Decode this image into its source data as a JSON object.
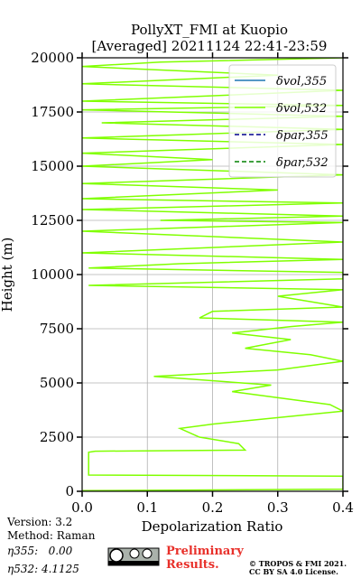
{
  "chart_data": {
    "type": "line",
    "title": "PollyXT_FMI at Kuopio",
    "subtitle": "[Averaged] 20211124 22:41-23:59",
    "x_label": "Depolarization Ratio",
    "y_label": "Height (m)",
    "xlim": [
      0,
      0.4
    ],
    "ylim": [
      0,
      20000
    ],
    "xticks": [
      {
        "value": 0,
        "label": "0.0"
      },
      0.1,
      0.2,
      0.3,
      0.4
    ],
    "yticks": [
      0,
      2500,
      5000,
      7500,
      10000,
      12500,
      15000,
      17500,
      20000
    ],
    "grid": true,
    "legend": "upper right",
    "y": [
      30,
      100,
      700,
      750,
      1800,
      1850,
      1900,
      2200,
      2500,
      2900,
      3100,
      3700,
      4000,
      4600,
      4900,
      5300,
      5600,
      6000,
      6300,
      6600,
      7000,
      7300,
      7600,
      7800,
      8000,
      8300,
      8500,
      9000,
      9300,
      9500,
      9800,
      10100,
      10300,
      10500,
      10700,
      11000,
      11500,
      12000,
      12400,
      12500,
      12700,
      13000,
      13300,
      13500,
      13900,
      14200,
      14600,
      15000,
      15300,
      15600,
      16000,
      16300,
      16700,
      17000,
      17300,
      17600,
      17800,
      18000,
      18500,
      18800,
      19200,
      19600,
      19800,
      20000
    ],
    "series": [
      {
        "name": "δvol,355",
        "color": "#1f77b4",
        "linestyle": "solid",
        "values": [
          null,
          null,
          null,
          null,
          null,
          null,
          null,
          null,
          null,
          null,
          null,
          null,
          null,
          null,
          null,
          null,
          null,
          null,
          null,
          null,
          null,
          null,
          null,
          null,
          null,
          null,
          null,
          null,
          null,
          null,
          null,
          null,
          null,
          null,
          null,
          null,
          null,
          null,
          null,
          null,
          null,
          null,
          null,
          null,
          null,
          null,
          null,
          null,
          null,
          null,
          null,
          null,
          null,
          null,
          null,
          null,
          null,
          null,
          null,
          null,
          null,
          null,
          null,
          null
        ]
      },
      {
        "name": "δvol,532",
        "color": "#80ff00",
        "linestyle": "solid",
        "values": [
          0.0,
          0.4,
          0.4,
          0.01,
          0.01,
          0.02,
          0.25,
          0.24,
          0.18,
          0.15,
          0.2,
          0.4,
          0.38,
          0.23,
          0.29,
          0.11,
          0.3,
          0.4,
          0.35,
          0.25,
          0.32,
          0.23,
          0.32,
          0.4,
          0.18,
          0.2,
          0.4,
          0.3,
          0.4,
          0.01,
          0.4,
          0.4,
          0.01,
          0.15,
          0.4,
          0.0,
          0.4,
          0.0,
          0.4,
          0.12,
          0.4,
          0.0,
          0.4,
          0.0,
          0.3,
          0.0,
          0.4,
          0.0,
          0.2,
          0.0,
          0.4,
          0.0,
          0.4,
          0.03,
          0.4,
          0.0,
          0.4,
          0.0,
          0.4,
          0.0,
          0.3,
          0.0,
          0.12,
          0.4
        ]
      },
      {
        "name": "δpar,355",
        "color": "#00008b",
        "linestyle": "dashed",
        "values": [
          null,
          null,
          null,
          null,
          null,
          null,
          null,
          null,
          null,
          null,
          null,
          null,
          null,
          null,
          null,
          null,
          null,
          null,
          null,
          null,
          null,
          null,
          null,
          null,
          null,
          null,
          null,
          null,
          null,
          null,
          null,
          null,
          null,
          null,
          null,
          null,
          null,
          null,
          null,
          null,
          null,
          null,
          null,
          null,
          null,
          null,
          null,
          null,
          null,
          null,
          null,
          null,
          null,
          null,
          null,
          null,
          null,
          null,
          null,
          null,
          null,
          null,
          null,
          null
        ]
      },
      {
        "name": "δpar,532",
        "color": "#008000",
        "linestyle": "dashed",
        "values": [
          null,
          null,
          null,
          null,
          null,
          null,
          null,
          null,
          null,
          null,
          null,
          null,
          null,
          null,
          null,
          null,
          null,
          null,
          null,
          null,
          null,
          null,
          null,
          null,
          null,
          null,
          null,
          null,
          null,
          null,
          null,
          null,
          null,
          null,
          null,
          null,
          null,
          null,
          null,
          null,
          null,
          null,
          null,
          null,
          null,
          null,
          null,
          null,
          null,
          null,
          null,
          null,
          null,
          null,
          null,
          null,
          null,
          null,
          null,
          null,
          null,
          null,
          null,
          null
        ]
      }
    ]
  },
  "notes": {
    "version": "Version: 3.2",
    "method": "Method: Raman",
    "eta355": "η355:   0.00",
    "eta532": "η532: 4.1125"
  },
  "footer": {
    "preliminary": "Preliminary",
    "results": "Results.",
    "copyright": "© TROPOS & FMI 2021.",
    "license": "CC BY SA 4.0 License."
  }
}
